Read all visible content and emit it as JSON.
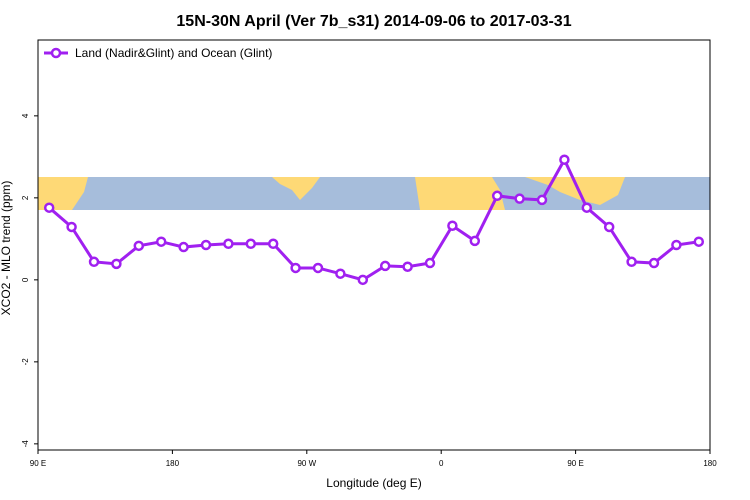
{
  "chart_data": {
    "type": "line",
    "title": "15N-30N April (Ver 7b_s31)   2014-09-06 to 2017-03-31",
    "x_label": "Longitude (deg E)",
    "y_label": "XCO2 - MLO trend (ppm)",
    "x": [
      97.5,
      112.5,
      127.5,
      142.5,
      157.5,
      172.5,
      187.5,
      202.5,
      217.5,
      232.5,
      247.5,
      262.5,
      277.5,
      292.5,
      307.5,
      322.5,
      337.5,
      352.5,
      367.5,
      382.5,
      397.5,
      412.5,
      427.5,
      442.5,
      457.5,
      472.5,
      487.5,
      502.5,
      517.5,
      532.5
    ],
    "series": [
      {
        "name": "Land (Nadir&Glint) and Ocean (Glint)",
        "color": "#a020f0",
        "values": [
          1.76,
          1.29,
          0.44,
          0.39,
          0.83,
          0.93,
          0.8,
          0.85,
          0.88,
          0.88,
          0.88,
          0.29,
          0.29,
          0.15,
          0.0,
          0.34,
          0.32,
          0.41,
          1.32,
          0.95,
          2.05,
          1.98,
          1.95,
          2.93,
          1.76,
          1.29,
          0.44,
          0.41,
          0.85,
          0.93
        ]
      }
    ],
    "xlim": [
      90,
      540
    ],
    "xticks": [
      {
        "value": 90,
        "label": "90 E"
      },
      {
        "value": 180,
        "label": "180"
      },
      {
        "value": 270,
        "label": "90 W"
      },
      {
        "value": 360,
        "label": "0"
      },
      {
        "value": 450,
        "label": "90 E"
      },
      {
        "value": 540,
        "label": "180"
      }
    ],
    "ylim": [
      -4.15,
      5.85
    ],
    "yticks": [
      -4,
      -2,
      0,
      2,
      4
    ],
    "legend": "top-left"
  }
}
